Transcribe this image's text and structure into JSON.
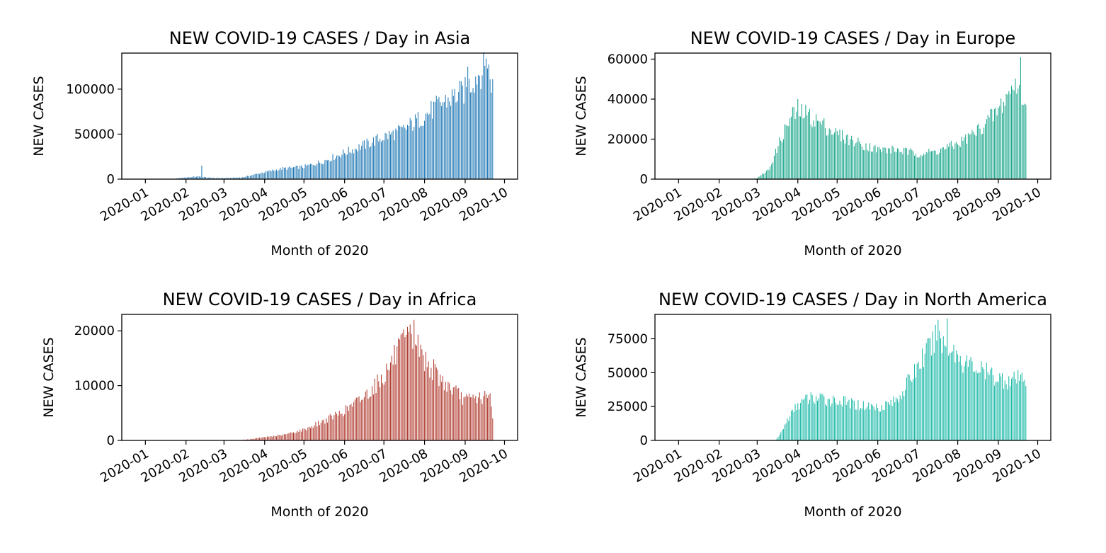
{
  "chart_data": [
    {
      "type": "bar",
      "title": "NEW COVID-19 CASES / Day in Asia",
      "xlabel": "Month of 2020",
      "ylabel": "NEW CASES",
      "color": "#1f77b4",
      "xlim": [
        "2019-12-14",
        "2020-10-11"
      ],
      "ylim": [
        0,
        140000
      ],
      "x_ticks": [
        "2020-01",
        "2020-02",
        "2020-03",
        "2020-04",
        "2020-05",
        "2020-06",
        "2020-07",
        "2020-08",
        "2020-09",
        "2020-10"
      ],
      "y_ticks": [
        0,
        50000,
        100000
      ],
      "y_tick_labels": [
        "0",
        "50000",
        "100000"
      ],
      "start_date": "2020-01-01",
      "grid": false,
      "profile": [
        [
          "2020-01-01",
          0
        ],
        [
          "2020-01-20",
          0
        ],
        [
          "2020-01-25",
          800
        ],
        [
          "2020-02-01",
          2000
        ],
        [
          "2020-02-10",
          3000
        ],
        [
          "2020-02-20",
          1500
        ],
        [
          "2020-03-01",
          1200
        ],
        [
          "2020-03-15",
          2000
        ],
        [
          "2020-04-01",
          8000
        ],
        [
          "2020-04-15",
          12000
        ],
        [
          "2020-05-01",
          14000
        ],
        [
          "2020-05-15",
          20000
        ],
        [
          "2020-06-01",
          30000
        ],
        [
          "2020-06-15",
          38000
        ],
        [
          "2020-07-01",
          48000
        ],
        [
          "2020-07-15",
          55000
        ],
        [
          "2020-08-01",
          72000
        ],
        [
          "2020-08-15",
          87000
        ],
        [
          "2020-09-01",
          100000
        ],
        [
          "2020-09-10",
          118000
        ],
        [
          "2020-09-18",
          128000
        ],
        [
          "2020-09-22",
          105000
        ]
      ],
      "spikes": [
        [
          "2020-02-13",
          15000
        ],
        [
          "2020-09-03",
          125000
        ],
        [
          "2020-09-17",
          134000
        ]
      ],
      "end_date": "2020-09-22"
    },
    {
      "type": "bar",
      "title": "NEW COVID-19 CASES / Day in Europe",
      "xlabel": "Month of 2020",
      "ylabel": "NEW CASES",
      "color": "#17a589",
      "xlim": [
        "2019-12-14",
        "2020-10-11"
      ],
      "ylim": [
        0,
        63000
      ],
      "x_ticks": [
        "2020-01",
        "2020-02",
        "2020-03",
        "2020-04",
        "2020-05",
        "2020-06",
        "2020-07",
        "2020-08",
        "2020-09",
        "2020-10"
      ],
      "y_ticks": [
        0,
        20000,
        40000,
        60000
      ],
      "y_tick_labels": [
        "0",
        "20000",
        "40000",
        "60000"
      ],
      "start_date": "2020-01-01",
      "grid": false,
      "profile": [
        [
          "2020-01-01",
          0
        ],
        [
          "2020-02-25",
          0
        ],
        [
          "2020-03-01",
          500
        ],
        [
          "2020-03-10",
          5000
        ],
        [
          "2020-03-20",
          22000
        ],
        [
          "2020-03-28",
          33000
        ],
        [
          "2020-04-05",
          34000
        ],
        [
          "2020-04-15",
          30000
        ],
        [
          "2020-05-01",
          23000
        ],
        [
          "2020-05-15",
          19000
        ],
        [
          "2020-06-01",
          15000
        ],
        [
          "2020-06-15",
          15000
        ],
        [
          "2020-07-01",
          13000
        ],
        [
          "2020-07-15",
          14000
        ],
        [
          "2020-08-01",
          18000
        ],
        [
          "2020-08-15",
          24000
        ],
        [
          "2020-09-01",
          35000
        ],
        [
          "2020-09-10",
          45000
        ],
        [
          "2020-09-17",
          50000
        ],
        [
          "2020-09-22",
          35000
        ]
      ],
      "spikes": [
        [
          "2020-04-01",
          40000
        ],
        [
          "2020-09-18",
          61000
        ]
      ],
      "end_date": "2020-09-22"
    },
    {
      "type": "bar",
      "title": "NEW COVID-19 CASES / Day in Africa",
      "xlabel": "Month of 2020",
      "ylabel": "NEW CASES",
      "color": "#b03a2e",
      "xlim": [
        "2019-12-14",
        "2020-10-11"
      ],
      "ylim": [
        0,
        23000
      ],
      "x_ticks": [
        "2020-01",
        "2020-02",
        "2020-03",
        "2020-04",
        "2020-05",
        "2020-06",
        "2020-07",
        "2020-08",
        "2020-09",
        "2020-10"
      ],
      "y_ticks": [
        0,
        10000,
        20000
      ],
      "y_tick_labels": [
        "0",
        "10000",
        "20000"
      ],
      "start_date": "2020-01-01",
      "grid": false,
      "profile": [
        [
          "2020-01-01",
          0
        ],
        [
          "2020-03-10",
          0
        ],
        [
          "2020-03-20",
          200
        ],
        [
          "2020-04-01",
          600
        ],
        [
          "2020-04-15",
          1000
        ],
        [
          "2020-05-01",
          2000
        ],
        [
          "2020-05-15",
          3500
        ],
        [
          "2020-06-01",
          5500
        ],
        [
          "2020-06-15",
          8000
        ],
        [
          "2020-07-01",
          12000
        ],
        [
          "2020-07-10",
          16000
        ],
        [
          "2020-07-20",
          19000
        ],
        [
          "2020-07-25",
          18500
        ],
        [
          "2020-08-01",
          15000
        ],
        [
          "2020-08-15",
          11000
        ],
        [
          "2020-09-01",
          7500
        ],
        [
          "2020-09-10",
          8000
        ],
        [
          "2020-09-20",
          8000
        ],
        [
          "2020-09-22",
          4000
        ]
      ],
      "spikes": [
        [
          "2020-07-24",
          22000
        ]
      ],
      "end_date": "2020-09-22"
    },
    {
      "type": "bar",
      "title": "NEW COVID-19 CASES / Day in North America",
      "xlabel": "Month of 2020",
      "ylabel": "NEW CASES",
      "color": "#17b8a6",
      "xlim": [
        "2019-12-14",
        "2020-10-11"
      ],
      "ylim": [
        0,
        93000
      ],
      "x_ticks": [
        "2020-01",
        "2020-02",
        "2020-03",
        "2020-04",
        "2020-05",
        "2020-06",
        "2020-07",
        "2020-08",
        "2020-09",
        "2020-10"
      ],
      "y_ticks": [
        0,
        25000,
        50000,
        75000
      ],
      "y_tick_labels": [
        "0",
        "25000",
        "50000",
        "75000"
      ],
      "start_date": "2020-01-01",
      "grid": false,
      "profile": [
        [
          "2020-01-01",
          0
        ],
        [
          "2020-03-15",
          0
        ],
        [
          "2020-03-18",
          4000
        ],
        [
          "2020-03-25",
          17000
        ],
        [
          "2020-04-01",
          27000
        ],
        [
          "2020-04-10",
          32000
        ],
        [
          "2020-05-01",
          30000
        ],
        [
          "2020-05-15",
          27000
        ],
        [
          "2020-06-01",
          25000
        ],
        [
          "2020-06-15",
          30000
        ],
        [
          "2020-06-25",
          45000
        ],
        [
          "2020-07-05",
          62000
        ],
        [
          "2020-07-15",
          75000
        ],
        [
          "2020-07-25",
          72000
        ],
        [
          "2020-08-05",
          60000
        ],
        [
          "2020-08-20",
          52000
        ],
        [
          "2020-09-01",
          47000
        ],
        [
          "2020-09-10",
          45000
        ],
        [
          "2020-09-22",
          47000
        ]
      ],
      "spikes": [
        [
          "2020-07-17",
          89000
        ],
        [
          "2020-07-24",
          90000
        ]
      ],
      "end_date": "2020-09-22"
    }
  ]
}
